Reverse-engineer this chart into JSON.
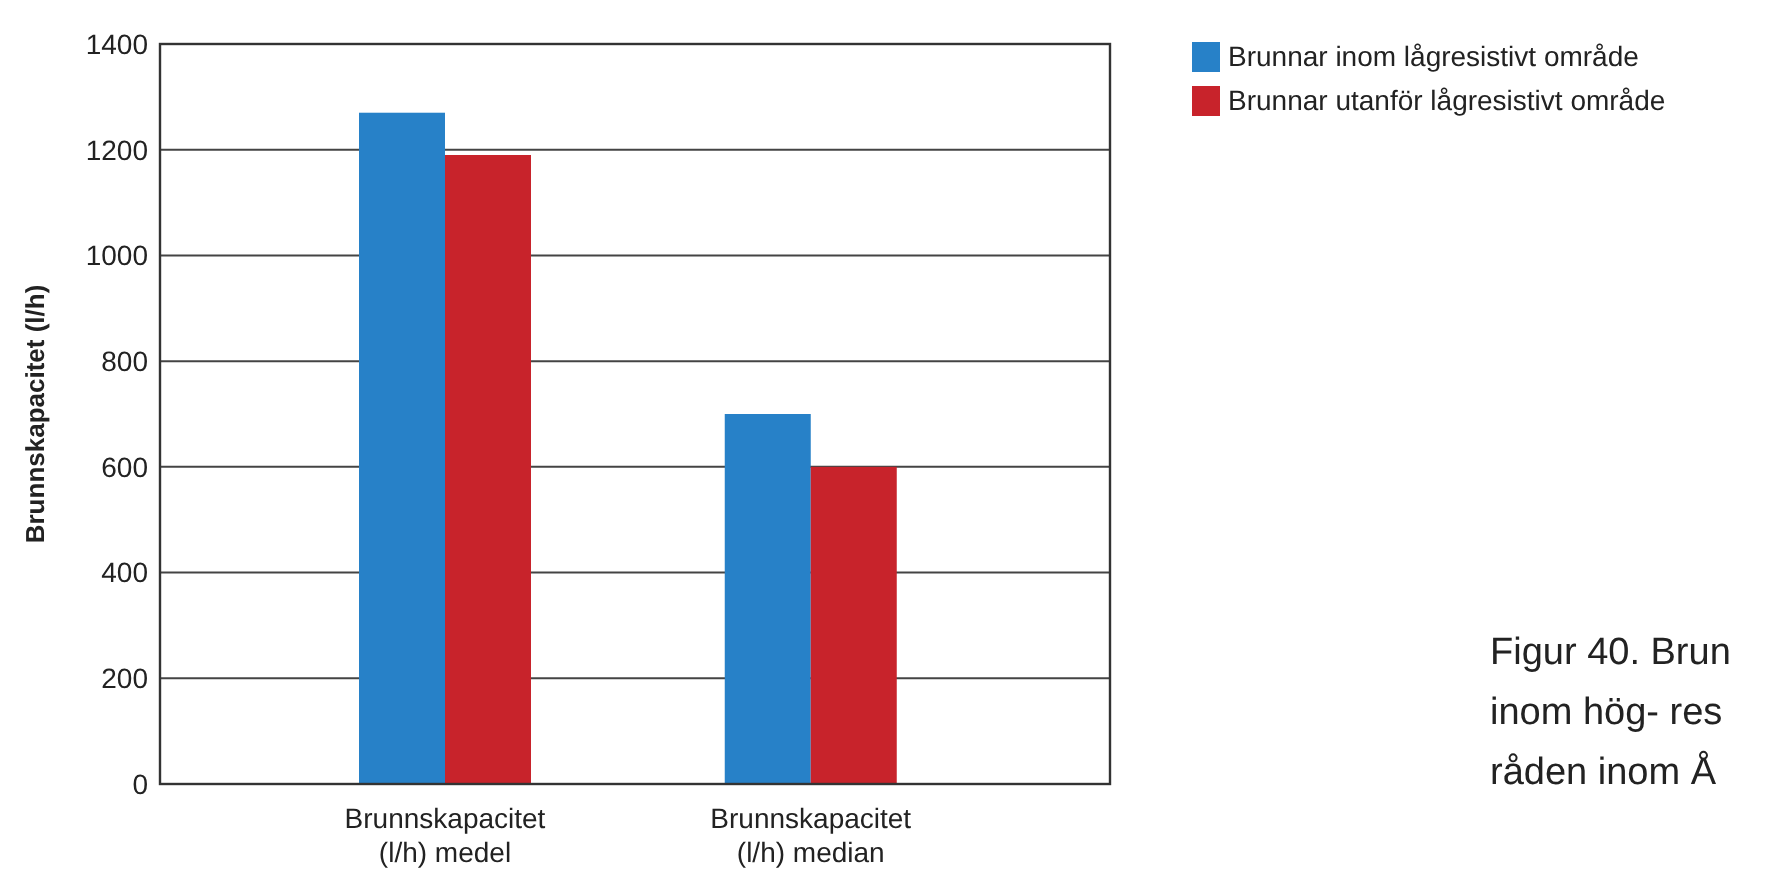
{
  "chart_data": {
    "type": "bar",
    "ylabel": "Brunnskapacitet (l/h)",
    "categories": [
      "Brunnskapacitet (l/h) medel",
      "Brunnskapacitet (l/h) median"
    ],
    "series": [
      {
        "name": "Brunnar inom lågresistivt område",
        "color": "#2781c8",
        "values": [
          1270,
          700
        ]
      },
      {
        "name": "Brunnar utanför lågresistivt område",
        "color": "#c8232b",
        "values": [
          1190,
          600
        ]
      }
    ],
    "ylim": [
      0,
      1400
    ],
    "yticks": [
      0,
      200,
      400,
      600,
      800,
      1000,
      1200,
      1400
    ],
    "grid": "y",
    "legend": "top right",
    "annotations": [
      "Figur 40. Brun",
      "inom hög- res",
      "råden inom Å"
    ]
  }
}
